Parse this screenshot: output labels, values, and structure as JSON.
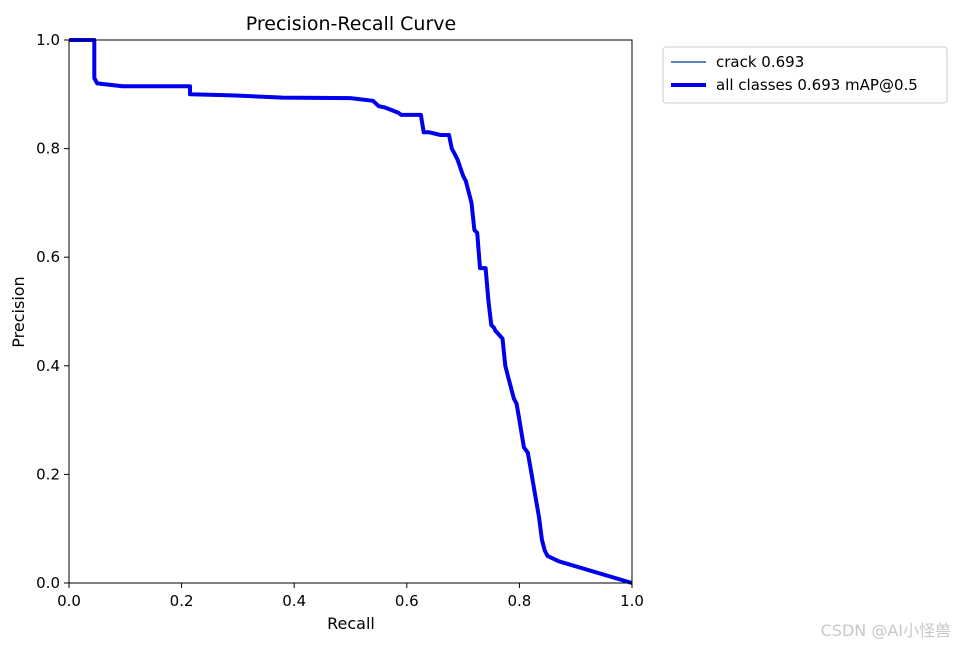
{
  "chart_data": {
    "type": "line",
    "title": "Precision-Recall Curve",
    "xlabel": "Recall",
    "ylabel": "Precision",
    "xlim": [
      0,
      1
    ],
    "ylim": [
      0,
      1
    ],
    "xticks": [
      "0.0",
      "0.2",
      "0.4",
      "0.6",
      "0.8",
      "1.0"
    ],
    "yticks": [
      "0.0",
      "0.2",
      "0.4",
      "0.6",
      "0.8",
      "1.0"
    ],
    "grid": false,
    "legend": "outside-top-right",
    "series": [
      {
        "name": "crack 0.693",
        "color": "#1f5f9f",
        "style": "thin",
        "x": [
          0.0,
          0.045,
          0.045,
          0.05,
          0.05,
          0.095,
          0.095,
          0.215,
          0.215,
          0.29,
          0.38,
          0.5,
          0.54,
          0.55,
          0.56,
          0.585,
          0.59,
          0.6,
          0.625,
          0.63,
          0.64,
          0.66,
          0.675,
          0.68,
          0.685,
          0.69,
          0.7,
          0.705,
          0.715,
          0.72,
          0.725,
          0.73,
          0.74,
          0.745,
          0.75,
          0.755,
          0.757,
          0.77,
          0.775,
          0.78,
          0.79,
          0.795,
          0.8,
          0.808,
          0.815,
          0.82,
          0.825,
          0.83,
          0.835,
          0.84,
          0.845,
          0.85,
          0.87,
          1.0
        ],
        "y": [
          1.0,
          1.0,
          0.93,
          0.92,
          0.92,
          0.915,
          0.915,
          0.915,
          0.9,
          0.898,
          0.894,
          0.893,
          0.888,
          0.878,
          0.876,
          0.866,
          0.862,
          0.862,
          0.862,
          0.83,
          0.83,
          0.825,
          0.825,
          0.8,
          0.79,
          0.78,
          0.75,
          0.74,
          0.7,
          0.65,
          0.645,
          0.58,
          0.58,
          0.52,
          0.475,
          0.47,
          0.465,
          0.45,
          0.4,
          0.38,
          0.34,
          0.33,
          0.3,
          0.25,
          0.24,
          0.21,
          0.18,
          0.15,
          0.12,
          0.08,
          0.06,
          0.05,
          0.04,
          0.0
        ]
      },
      {
        "name": "all classes 0.693 mAP@0.5",
        "color": "#0000ee",
        "style": "thick",
        "x": [
          0.0,
          0.045,
          0.045,
          0.05,
          0.05,
          0.095,
          0.095,
          0.215,
          0.215,
          0.29,
          0.38,
          0.5,
          0.54,
          0.55,
          0.56,
          0.585,
          0.59,
          0.6,
          0.625,
          0.63,
          0.64,
          0.66,
          0.675,
          0.68,
          0.685,
          0.69,
          0.7,
          0.705,
          0.715,
          0.72,
          0.725,
          0.73,
          0.74,
          0.745,
          0.75,
          0.755,
          0.757,
          0.77,
          0.775,
          0.78,
          0.79,
          0.795,
          0.8,
          0.808,
          0.815,
          0.82,
          0.825,
          0.83,
          0.835,
          0.84,
          0.845,
          0.85,
          0.87,
          1.0
        ],
        "y": [
          1.0,
          1.0,
          0.93,
          0.92,
          0.92,
          0.915,
          0.915,
          0.915,
          0.9,
          0.898,
          0.894,
          0.893,
          0.888,
          0.878,
          0.876,
          0.866,
          0.862,
          0.862,
          0.862,
          0.83,
          0.83,
          0.825,
          0.825,
          0.8,
          0.79,
          0.78,
          0.75,
          0.74,
          0.7,
          0.65,
          0.645,
          0.58,
          0.58,
          0.52,
          0.475,
          0.47,
          0.465,
          0.45,
          0.4,
          0.38,
          0.34,
          0.33,
          0.3,
          0.25,
          0.24,
          0.21,
          0.18,
          0.15,
          0.12,
          0.08,
          0.06,
          0.05,
          0.04,
          0.0
        ]
      }
    ]
  },
  "watermark": "CSDN @AI小怪兽"
}
